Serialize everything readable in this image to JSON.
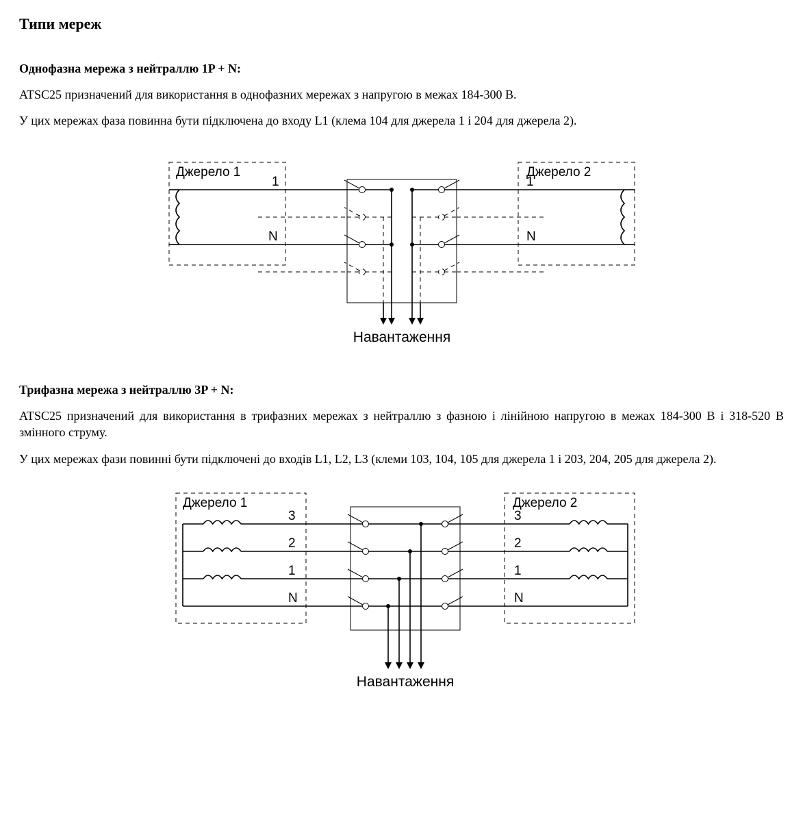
{
  "page": {
    "title": "Типи мереж"
  },
  "section1": {
    "heading": "Однофазна мережа з нейтраллю 1P + N:",
    "para1": "ATSC25 призначений для використання в однофазних мережах з напругою в межах 184-300 В.",
    "para2": "У цих мережах фаза повинна бути підключена до входу L1 (клема 104 для джерела 1 і 204 для джерела 2)."
  },
  "section2": {
    "heading": "Трифазна мережа з нейтраллю 3P + N:",
    "para1": "ATSC25 призначений для використання в трифазних мережах з нейтраллю з фазною і лінійною напругою в межах 184-300 В і 318-520 В змінного струму.",
    "para2": "У цих мережах фази повинні бути підключені до входів L1, L2, L3 (клеми 103, 104, 105 для джерела 1 і 203, 204, 205 для джерела 2)."
  },
  "diagram": {
    "source1": "Джерело 1",
    "source2": "Джерело 2",
    "load": "Навантаження",
    "line1": "1",
    "line2": "2",
    "line3": "3",
    "neutral": "N",
    "colors": {
      "stroke": "#000000",
      "background": "#ffffff",
      "text": "#000000"
    },
    "stroke_width_main": 1.6,
    "stroke_width_thin": 1.0,
    "dash_pattern": "6,5",
    "label_fontsize": 19,
    "load_fontsize": 21
  }
}
